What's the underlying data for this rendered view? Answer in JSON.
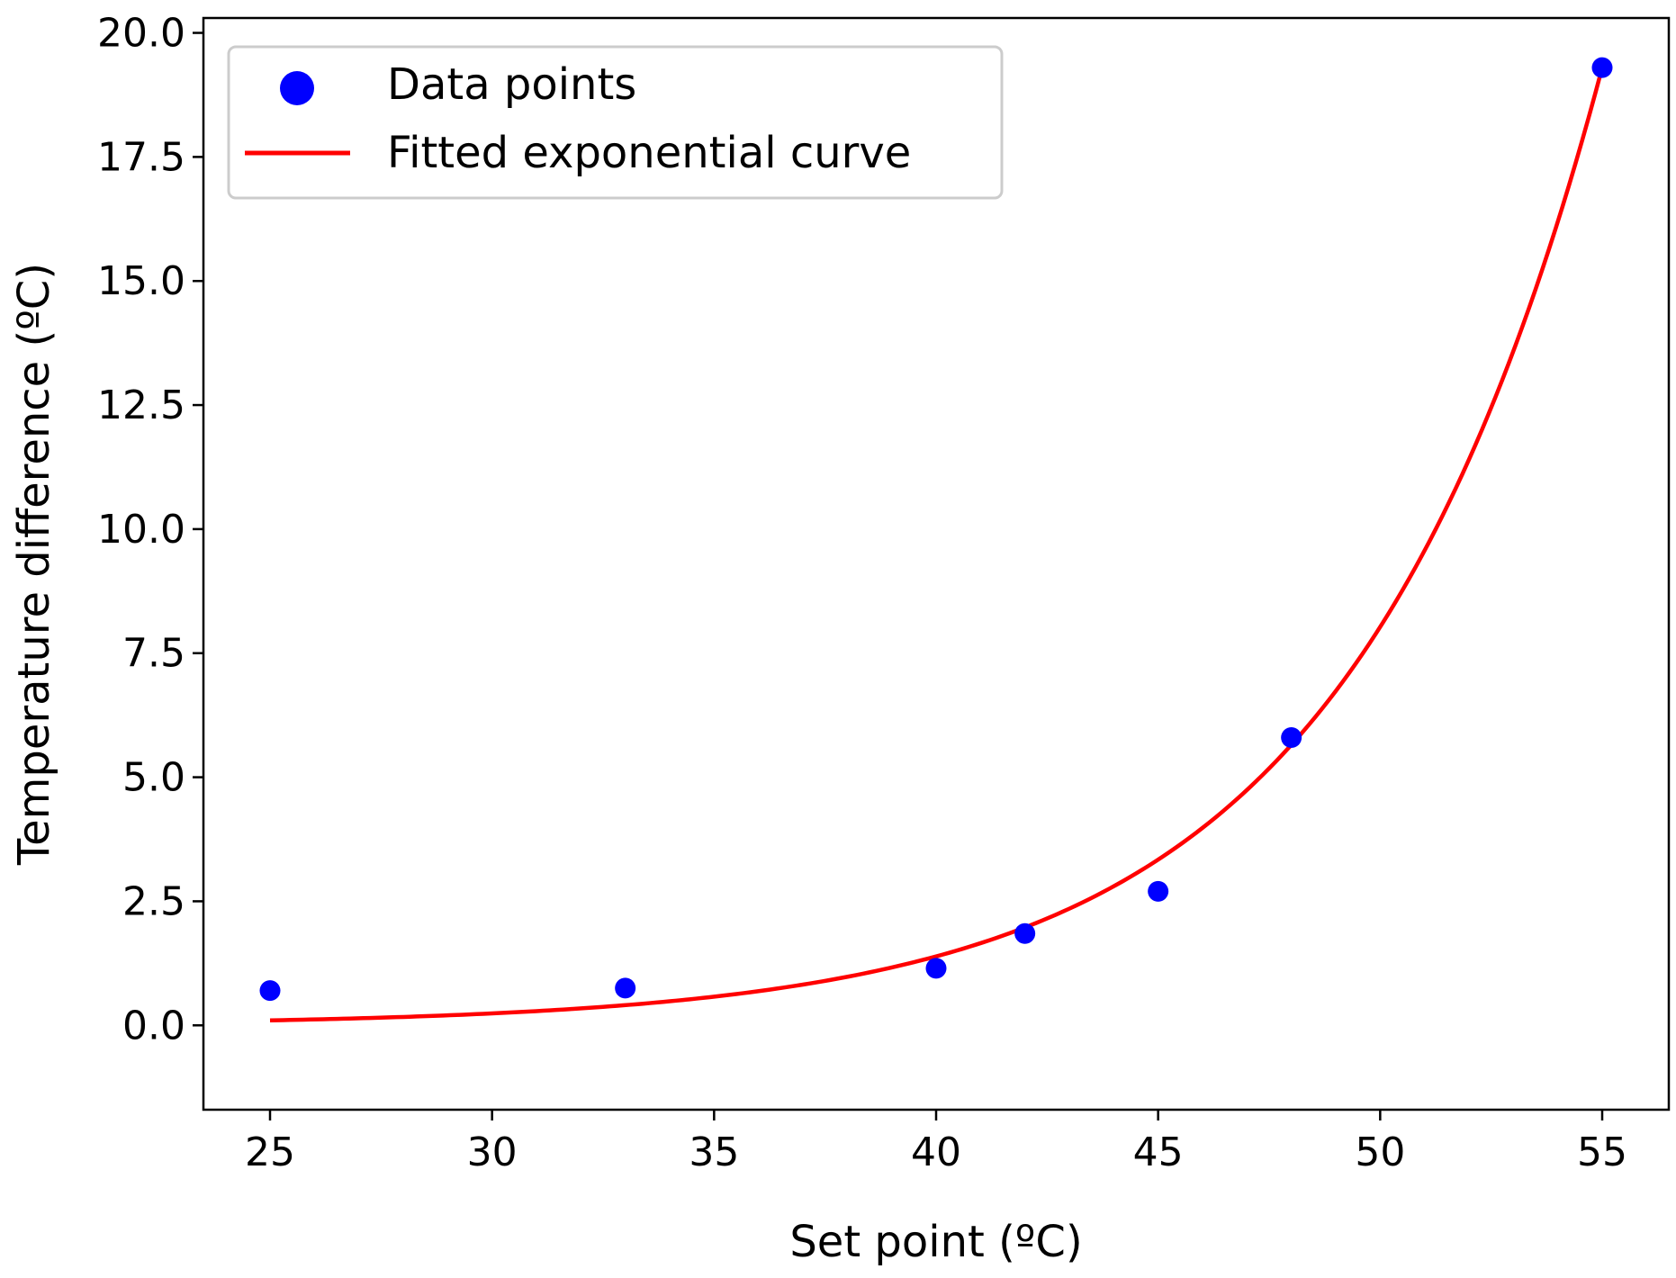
{
  "chart_data": {
    "type": "scatter",
    "title": "",
    "xlabel": "Set point (ºC)",
    "ylabel": "Temperature difference (ºC)",
    "xlim": [
      23.5,
      56.5
    ],
    "ylim": [
      -1.7,
      20.3
    ],
    "xticks": [
      25,
      30,
      35,
      40,
      45,
      50,
      55
    ],
    "xtick_labels": [
      "25",
      "30",
      "35",
      "40",
      "45",
      "50",
      "55"
    ],
    "yticks": [
      0.0,
      2.5,
      5.0,
      7.5,
      10.0,
      12.5,
      15.0,
      17.5,
      20.0
    ],
    "ytick_labels": [
      "0.0",
      "2.5",
      "5.0",
      "7.5",
      "10.0",
      "12.5",
      "15.0",
      "17.5",
      "20.0"
    ],
    "grid": false,
    "legend_position": "top-left",
    "series": [
      {
        "name": "Data points",
        "type": "scatter",
        "color": "#0000ff",
        "x": [
          25,
          33,
          40,
          42,
          45,
          48,
          55
        ],
        "y": [
          0.7,
          0.75,
          1.15,
          1.85,
          2.7,
          5.8,
          19.3
        ]
      },
      {
        "name": "Fitted exponential curve",
        "type": "line",
        "color": "#ff0000",
        "model": "exponential",
        "x_range": [
          25,
          55
        ],
        "y_at_range": [
          0.1,
          19.3
        ]
      }
    ]
  }
}
